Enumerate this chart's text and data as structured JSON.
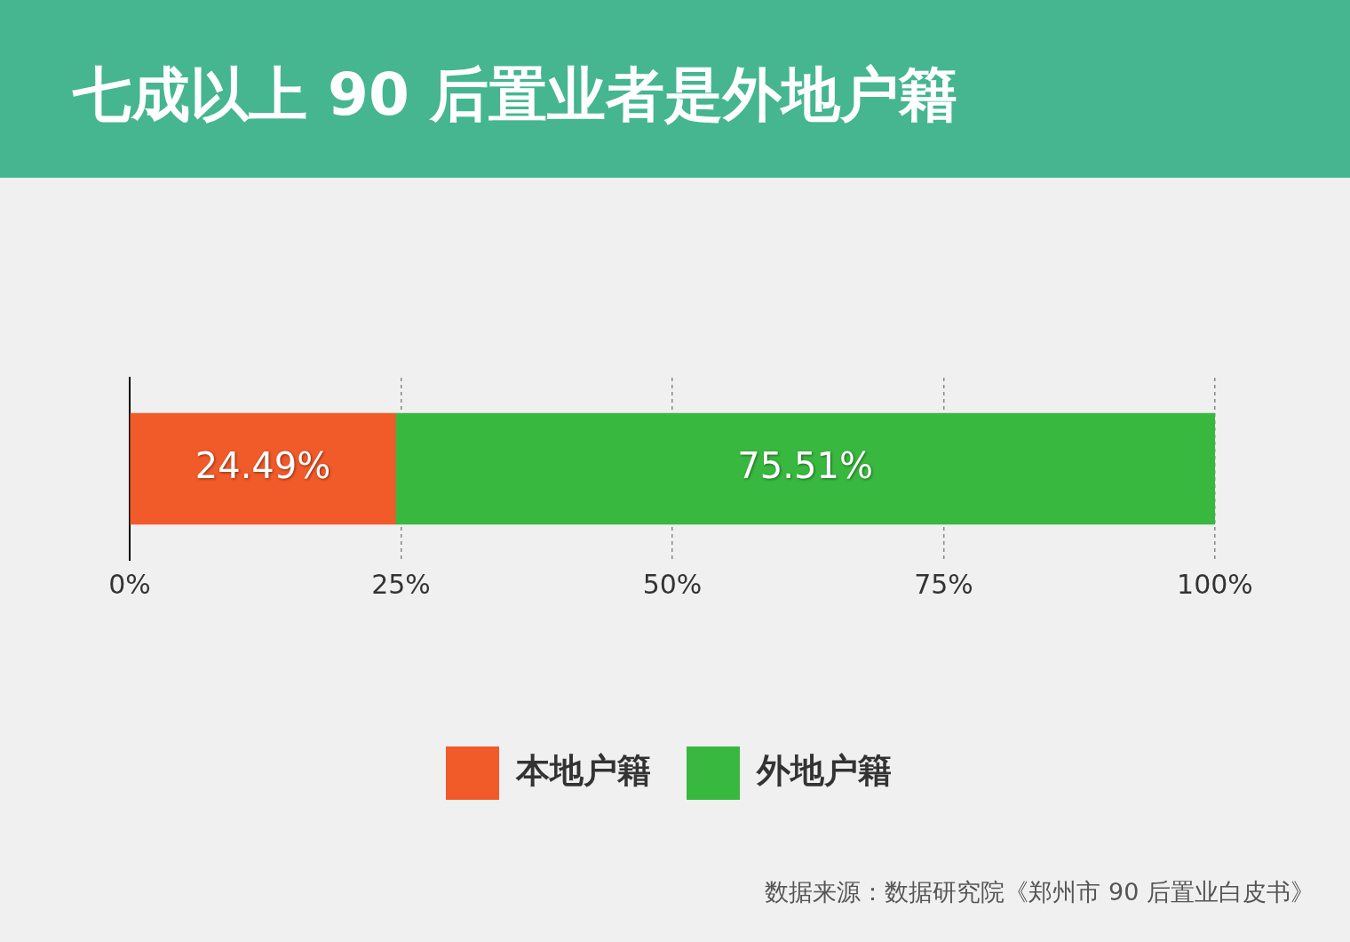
{
  "chart_data": {
    "type": "bar",
    "orientation": "horizontal",
    "stacked": true,
    "title": "七成以上 90 后置业者是外地户籍",
    "categories": [
      null
    ],
    "series": [
      {
        "name": "本地户籍",
        "color": "#f15a29",
        "values": [
          24.49
        ],
        "value_labels": [
          "24.49%"
        ]
      },
      {
        "name": "外地户籍",
        "color": "#39b83f",
        "values": [
          75.51
        ],
        "value_labels": [
          "75.51%"
        ]
      }
    ],
    "xlim": [
      0,
      100
    ],
    "xticks": [
      {
        "value": 0,
        "label": "0%"
      },
      {
        "value": 25,
        "label": "25%"
      },
      {
        "value": 50,
        "label": "50%"
      },
      {
        "value": 75,
        "label": "75%"
      },
      {
        "value": 100,
        "label": "100%"
      }
    ],
    "grid": "x",
    "legend": "bottom",
    "annotations": [
      "数据来源：数据研究院《郑州市 90 后置业白皮书》"
    ]
  }
}
